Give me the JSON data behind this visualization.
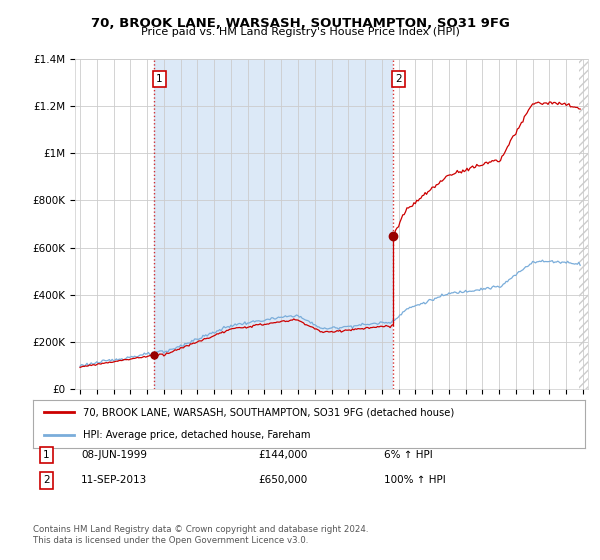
{
  "title": "70, BROOK LANE, WARSASH, SOUTHAMPTON, SO31 9FG",
  "subtitle": "Price paid vs. HM Land Registry's House Price Index (HPI)",
  "background_color": "#ffffff",
  "plot_bg_color": "#ffffff",
  "shaded_bg_color": "#dce9f7",
  "grid_color": "#cccccc",
  "ylim": [
    0,
    1400000
  ],
  "yticks": [
    0,
    200000,
    400000,
    600000,
    800000,
    1000000,
    1200000,
    1400000
  ],
  "ytick_labels": [
    "£0",
    "£200K",
    "£400K",
    "£600K",
    "£800K",
    "£1M",
    "£1.2M",
    "£1.4M"
  ],
  "xlim_start": 1994.7,
  "xlim_end": 2025.3,
  "transaction1_date": 1999.44,
  "transaction1_price": 144000,
  "transaction2_date": 2013.69,
  "transaction2_price": 650000,
  "legend_line1": "70, BROOK LANE, WARSASH, SOUTHAMPTON, SO31 9FG (detached house)",
  "legend_line2": "HPI: Average price, detached house, Fareham",
  "line1_color": "#cc0000",
  "line2_color": "#7aadda",
  "table_row1": [
    "1",
    "08-JUN-1999",
    "£144,000",
    "6% ↑ HPI"
  ],
  "table_row2": [
    "2",
    "11-SEP-2013",
    "£650,000",
    "100% ↑ HPI"
  ],
  "footnote": "Contains HM Land Registry data © Crown copyright and database right 2024.\nThis data is licensed under the Open Government Licence v3.0."
}
